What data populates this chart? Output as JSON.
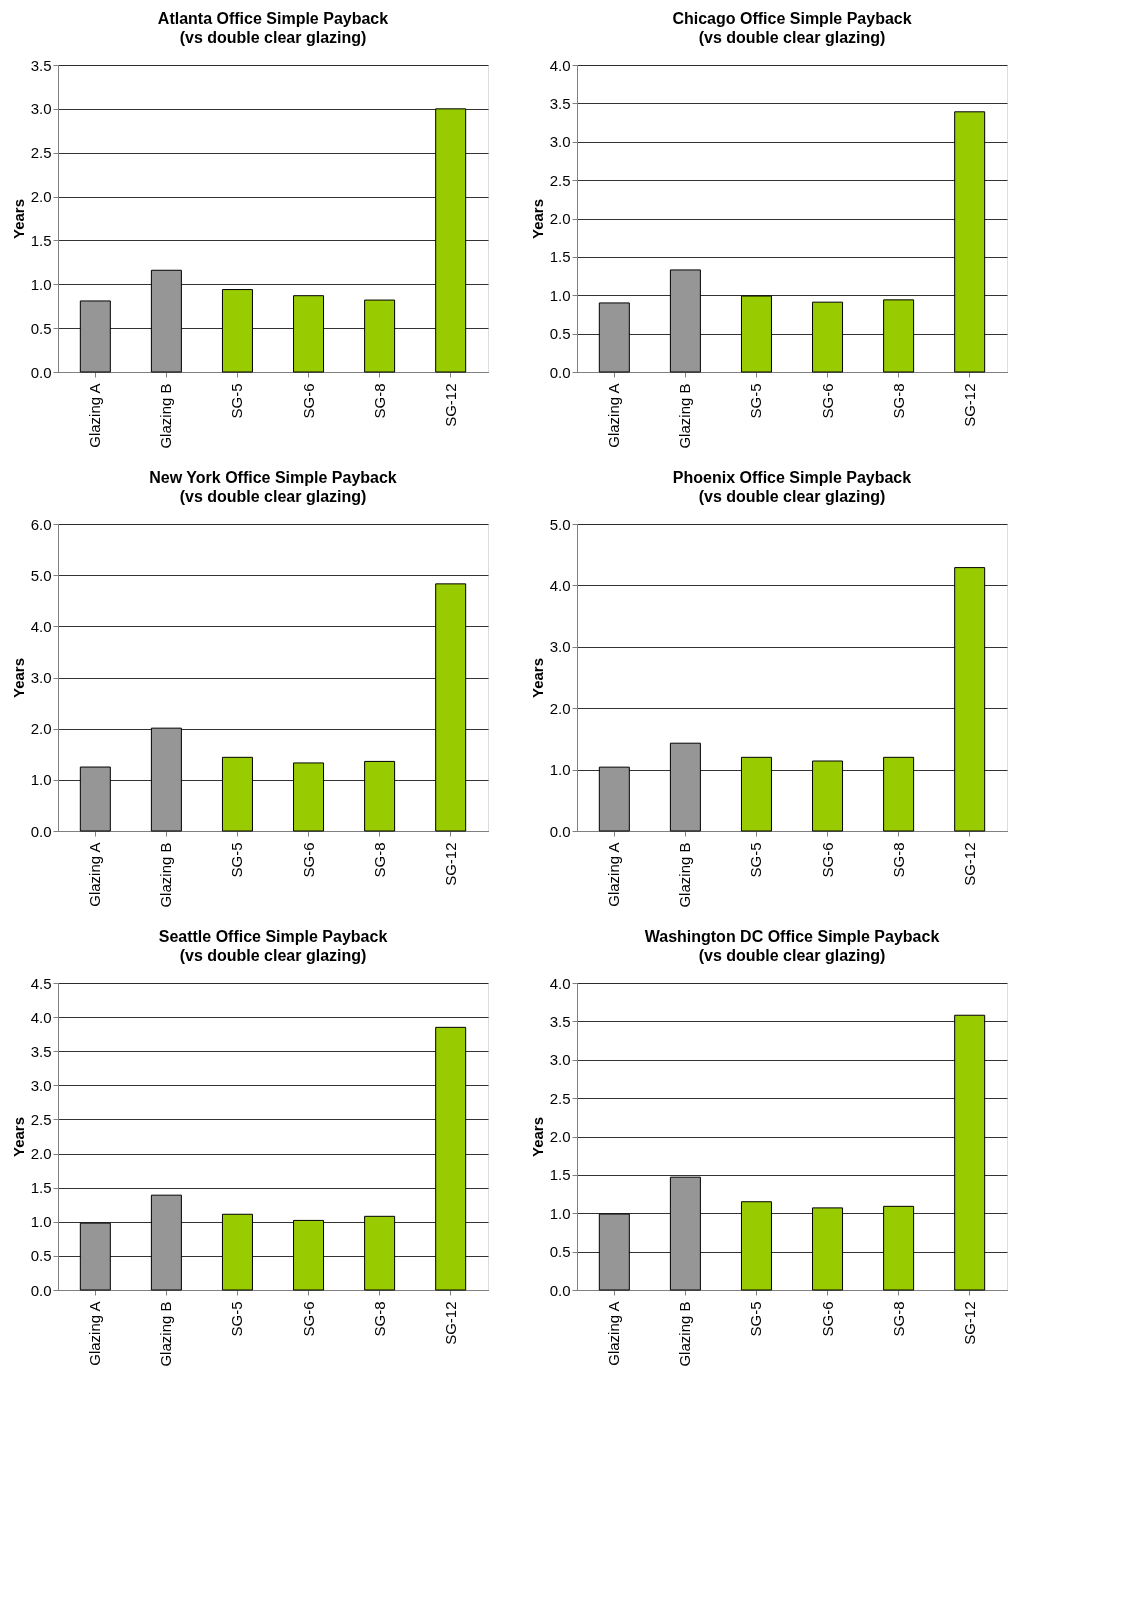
{
  "chart_data": [
    {
      "type": "bar",
      "title": "Atlanta Office Simple Payback",
      "subtitle": "(vs double clear glazing)",
      "ylabel": "Years",
      "categories": [
        "Glazing A",
        "Glazing B",
        "SG-5",
        "SG-6",
        "SG-8",
        "SG-12"
      ],
      "values": [
        0.81,
        1.16,
        0.94,
        0.87,
        0.82,
        3.0
      ],
      "colors": [
        "#969696",
        "#969696",
        "#99cc00",
        "#99cc00",
        "#99cc00",
        "#99cc00"
      ],
      "ylim": [
        0,
        3.5
      ],
      "yticks": [
        {
          "value": 0,
          "label": "0.0"
        },
        {
          "value": 0.5,
          "label": "0.5"
        },
        {
          "value": 1,
          "label": "1.0"
        },
        {
          "value": 1.5,
          "label": "1.5"
        },
        {
          "value": 2,
          "label": "2.0"
        },
        {
          "value": 2.5,
          "label": "2.5"
        },
        {
          "value": 3,
          "label": "3.0"
        },
        {
          "value": 3.5,
          "label": "3.5"
        }
      ],
      "grid": "y"
    },
    {
      "type": "bar",
      "title": "Chicago Office Simple Payback",
      "subtitle": "(vs double clear glazing)",
      "ylabel": "Years",
      "categories": [
        "Glazing A",
        "Glazing B",
        "SG-5",
        "SG-6",
        "SG-8",
        "SG-12"
      ],
      "values": [
        0.9,
        1.33,
        0.99,
        0.91,
        0.94,
        3.39
      ],
      "colors": [
        "#969696",
        "#969696",
        "#99cc00",
        "#99cc00",
        "#99cc00",
        "#99cc00"
      ],
      "ylim": [
        0,
        4
      ],
      "yticks": [
        {
          "value": 0,
          "label": "0.0"
        },
        {
          "value": 0.5,
          "label": "0.5"
        },
        {
          "value": 1,
          "label": "1.0"
        },
        {
          "value": 1.5,
          "label": "1.5"
        },
        {
          "value": 2,
          "label": "2.0"
        },
        {
          "value": 2.5,
          "label": "2.5"
        },
        {
          "value": 3,
          "label": "3.0"
        },
        {
          "value": 3.5,
          "label": "3.5"
        },
        {
          "value": 4,
          "label": "4.0"
        }
      ],
      "grid": "y"
    },
    {
      "type": "bar",
      "title": "New York Office Simple Payback",
      "subtitle": "(vs double clear glazing)",
      "ylabel": "Years",
      "categories": [
        "Glazing A",
        "Glazing B",
        "SG-5",
        "SG-6",
        "SG-8",
        "SG-12"
      ],
      "values": [
        1.25,
        2.01,
        1.44,
        1.33,
        1.36,
        4.83
      ],
      "colors": [
        "#969696",
        "#969696",
        "#99cc00",
        "#99cc00",
        "#99cc00",
        "#99cc00"
      ],
      "ylim": [
        0,
        6
      ],
      "yticks": [
        {
          "value": 0,
          "label": "0.0"
        },
        {
          "value": 1,
          "label": "1.0"
        },
        {
          "value": 2,
          "label": "2.0"
        },
        {
          "value": 3,
          "label": "3.0"
        },
        {
          "value": 4,
          "label": "4.0"
        },
        {
          "value": 5,
          "label": "5.0"
        },
        {
          "value": 6,
          "label": "6.0"
        }
      ],
      "grid": "y"
    },
    {
      "type": "bar",
      "title": "Phoenix Office Simple Payback",
      "subtitle": "(vs double clear glazing)",
      "ylabel": "Years",
      "categories": [
        "Glazing A",
        "Glazing B",
        "SG-5",
        "SG-6",
        "SG-8",
        "SG-12"
      ],
      "values": [
        1.04,
        1.43,
        1.2,
        1.14,
        1.2,
        4.29
      ],
      "colors": [
        "#969696",
        "#969696",
        "#99cc00",
        "#99cc00",
        "#99cc00",
        "#99cc00"
      ],
      "ylim": [
        0,
        5
      ],
      "yticks": [
        {
          "value": 0,
          "label": "0.0"
        },
        {
          "value": 1,
          "label": "1.0"
        },
        {
          "value": 2,
          "label": "2.0"
        },
        {
          "value": 3,
          "label": "3.0"
        },
        {
          "value": 4,
          "label": "4.0"
        },
        {
          "value": 5,
          "label": "5.0"
        }
      ],
      "grid": "y"
    },
    {
      "type": "bar",
      "title": "Seattle Office Simple Payback",
      "subtitle": "(vs double clear glazing)",
      "ylabel": "Years",
      "categories": [
        "Glazing A",
        "Glazing B",
        "SG-5",
        "SG-6",
        "SG-8",
        "SG-12"
      ],
      "values": [
        0.98,
        1.39,
        1.11,
        1.02,
        1.08,
        3.85
      ],
      "colors": [
        "#969696",
        "#969696",
        "#99cc00",
        "#99cc00",
        "#99cc00",
        "#99cc00"
      ],
      "ylim": [
        0,
        4.5
      ],
      "yticks": [
        {
          "value": 0,
          "label": "0.0"
        },
        {
          "value": 0.5,
          "label": "0.5"
        },
        {
          "value": 1,
          "label": "1.0"
        },
        {
          "value": 1.5,
          "label": "1.5"
        },
        {
          "value": 2,
          "label": "2.0"
        },
        {
          "value": 2.5,
          "label": "2.5"
        },
        {
          "value": 3,
          "label": "3.0"
        },
        {
          "value": 3.5,
          "label": "3.5"
        },
        {
          "value": 4,
          "label": "4.0"
        },
        {
          "value": 4.5,
          "label": "4.5"
        }
      ],
      "grid": "y"
    },
    {
      "type": "bar",
      "title": "Washington DC Office Simple Payback",
      "subtitle": "(vs double clear glazing)",
      "ylabel": "Years",
      "categories": [
        "Glazing A",
        "Glazing B",
        "SG-5",
        "SG-6",
        "SG-8",
        "SG-12"
      ],
      "values": [
        0.99,
        1.47,
        1.15,
        1.07,
        1.09,
        3.58
      ],
      "colors": [
        "#969696",
        "#969696",
        "#99cc00",
        "#99cc00",
        "#99cc00",
        "#99cc00"
      ],
      "ylim": [
        0,
        4
      ],
      "yticks": [
        {
          "value": 0,
          "label": "0.0"
        },
        {
          "value": 0.5,
          "label": "0.5"
        },
        {
          "value": 1,
          "label": "1.0"
        },
        {
          "value": 1.5,
          "label": "1.5"
        },
        {
          "value": 2,
          "label": "2.0"
        },
        {
          "value": 2.5,
          "label": "2.5"
        },
        {
          "value": 3,
          "label": "3.0"
        },
        {
          "value": 3.5,
          "label": "3.5"
        },
        {
          "value": 4,
          "label": "4.0"
        }
      ],
      "grid": "y"
    }
  ]
}
